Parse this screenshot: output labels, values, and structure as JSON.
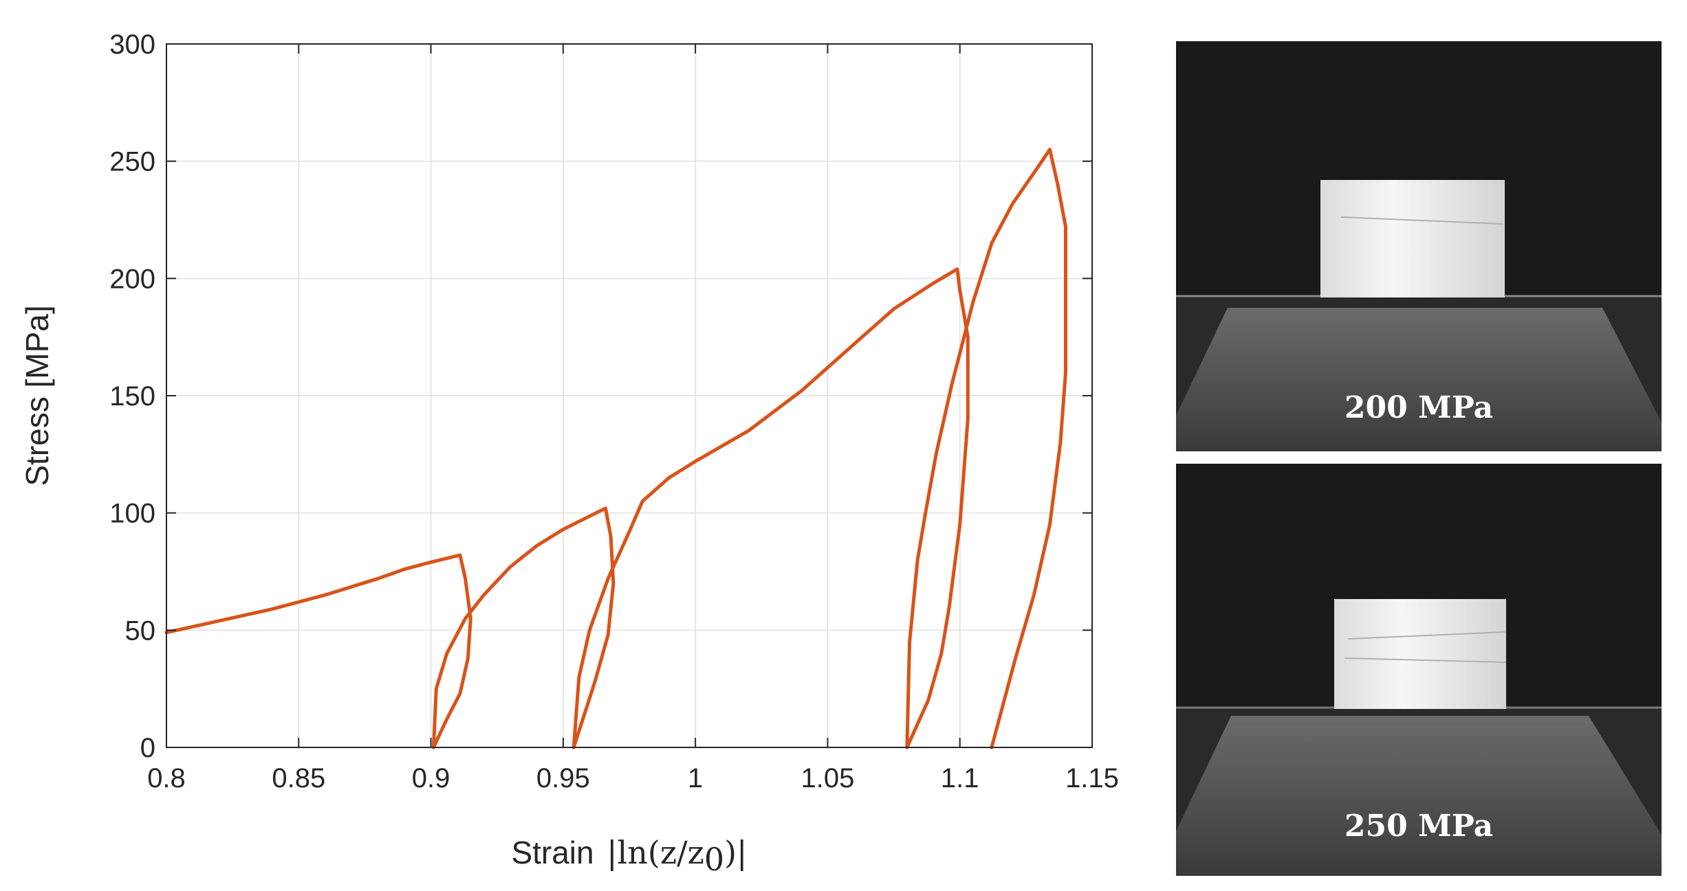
{
  "chart_data": {
    "type": "line",
    "xlabel_text": "Strain",
    "xlabel_math": "|ln(z/z",
    "xlabel_sub": "0",
    "xlabel_close": ")|",
    "ylabel": "Stress [MPa]",
    "xlim": [
      0.8,
      1.15
    ],
    "ylim": [
      0,
      300
    ],
    "x_ticks": [
      0.8,
      0.85,
      0.9,
      0.95,
      1,
      1.05,
      1.1,
      1.15
    ],
    "x_tick_labels": [
      "0.8",
      "0.85",
      "0.9",
      "0.95",
      "1",
      "1.05",
      "1.1",
      "1.15"
    ],
    "y_ticks": [
      0,
      50,
      100,
      150,
      200,
      250,
      300
    ],
    "y_tick_labels": [
      "0",
      "50",
      "100",
      "150",
      "200",
      "250",
      "300"
    ],
    "grid": true,
    "series": [
      {
        "color": "#D95319",
        "points": [
          [
            0.8,
            49
          ],
          [
            0.82,
            54
          ],
          [
            0.84,
            59
          ],
          [
            0.86,
            65
          ],
          [
            0.88,
            72
          ],
          [
            0.89,
            76
          ],
          [
            0.9,
            79
          ],
          [
            0.911,
            82
          ],
          [
            0.913,
            72
          ],
          [
            0.915,
            55
          ],
          [
            0.914,
            38
          ],
          [
            0.911,
            23
          ],
          [
            0.906,
            12
          ],
          [
            0.901,
            0
          ],
          [
            0.902,
            25
          ],
          [
            0.906,
            40
          ],
          [
            0.913,
            55
          ],
          [
            0.92,
            65
          ],
          [
            0.93,
            77
          ],
          [
            0.94,
            86
          ],
          [
            0.95,
            93
          ],
          [
            0.966,
            102
          ],
          [
            0.968,
            90
          ],
          [
            0.969,
            70
          ],
          [
            0.967,
            48
          ],
          [
            0.962,
            28
          ],
          [
            0.958,
            14
          ],
          [
            0.954,
            0
          ],
          [
            0.956,
            30
          ],
          [
            0.96,
            50
          ],
          [
            0.967,
            72
          ],
          [
            0.975,
            92
          ],
          [
            0.98,
            105
          ],
          [
            0.99,
            115
          ],
          [
            1.0,
            122
          ],
          [
            1.02,
            135
          ],
          [
            1.04,
            152
          ],
          [
            1.06,
            172
          ],
          [
            1.075,
            187
          ],
          [
            1.09,
            198
          ],
          [
            1.099,
            204
          ],
          [
            1.1,
            195
          ],
          [
            1.103,
            175
          ],
          [
            1.103,
            140
          ],
          [
            1.1,
            95
          ],
          [
            1.096,
            60
          ],
          [
            1.093,
            40
          ],
          [
            1.088,
            20
          ],
          [
            1.08,
            0
          ],
          [
            1.081,
            45
          ],
          [
            1.084,
            80
          ],
          [
            1.087,
            100
          ],
          [
            1.091,
            125
          ],
          [
            1.097,
            155
          ],
          [
            1.105,
            190
          ],
          [
            1.112,
            215
          ],
          [
            1.12,
            232
          ],
          [
            1.128,
            245
          ],
          [
            1.134,
            255
          ],
          [
            1.137,
            240
          ],
          [
            1.14,
            222
          ],
          [
            1.14,
            200
          ],
          [
            1.14,
            160
          ],
          [
            1.138,
            130
          ],
          [
            1.134,
            95
          ],
          [
            1.128,
            65
          ],
          [
            1.121,
            38
          ],
          [
            1.112,
            0
          ]
        ]
      }
    ]
  },
  "photos": [
    {
      "label": "200 MPa"
    },
    {
      "label": "250 MPa"
    }
  ],
  "colors": {
    "line": "#D95319",
    "grid": "#e6e6e6",
    "axis": "#262626",
    "photo_background": "#1a1a1a",
    "sample": "#f2f2f2"
  }
}
